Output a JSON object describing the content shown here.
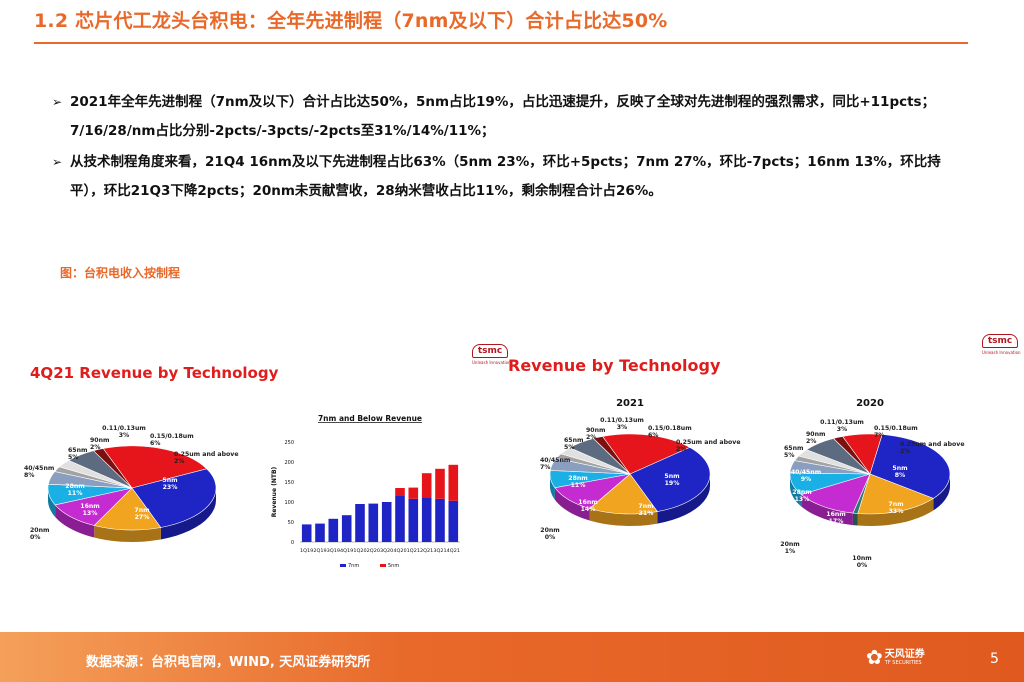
{
  "header": {
    "title": "1.2 芯片代工龙头台积电：全年先进制程（7nm及以下）合计占比达50%"
  },
  "bullets": [
    "2021年全年先进制程（7nm及以下）合计占比达50%，5nm占比19%，占比迅速提升，反映了全球对先进制程的强烈需求，同比+11pcts；7/16/28/nm占比分别-2pcts/-3pcts/-2pcts至31%/14%/11%；",
    "从技术制程角度来看，21Q4 16nm及以下先进制程占比63%（5nm 23%，环比+5pcts；7nm 27%，环比-7pcts；16nm 13%，环比持平），环比21Q3下降2pcts；20nm未贡献营收，28纳米营收占比11%，剩余制程合计占26%。"
  ],
  "figure_caption": "图：台积电收入按制程",
  "panel1": {
    "title": "4Q21 Revenue by Technology"
  },
  "panel3": {
    "title": "Revenue by Technology",
    "logo": "tsmc",
    "logo_tagline": "Unleash Innovation"
  },
  "footer": {
    "source": "数据来源：台积电官网，WIND, 天风证券研究所",
    "brand": "天风证券",
    "brand_sub": "TF SECURITIES",
    "page_number": "5"
  },
  "colors": {
    "accent": "#e8692a",
    "title_red": "#e01d1d",
    "5nm": "#e5151b",
    "7nm": "#1f24c4",
    "16nm": "#f0a420",
    "20nm": "#2f7a6e",
    "28nm": "#c42bd0",
    "40/45nm": "#1ab0e6",
    "65nm": "#8a9fc0",
    "90nm": "#a3a3a3",
    "0.11/0.13um": "#e0e0e0",
    "0.15/0.18um": "#5c6b80",
    "0.25um and above": "#7b1010"
  },
  "chart_data": [
    {
      "type": "pie",
      "title": "",
      "labels": [
        "5nm",
        "7nm",
        "16nm",
        "20nm",
        "28nm",
        "40/45nm",
        "65nm",
        "90nm",
        "0.11/0.13um",
        "0.15/0.18um",
        "0.25um and above"
      ],
      "values": [
        23,
        27,
        13,
        0,
        11,
        8,
        5,
        2,
        3,
        6,
        2
      ]
    },
    {
      "type": "bar",
      "title": "7nm and Below Revenue",
      "ylabel": "Revenue (NTB)",
      "ylim": [
        0,
        250
      ],
      "yticks": [
        0,
        50,
        100,
        150,
        200,
        250
      ],
      "categories": [
        "1Q19",
        "2Q19",
        "3Q19",
        "4Q19",
        "1Q20",
        "2Q20",
        "3Q20",
        "4Q20",
        "1Q21",
        "2Q21",
        "3Q21",
        "4Q21"
      ],
      "category_label_text": "1Q192Q193Q194Q191Q202Q203Q204Q201Q212Q213Q214Q21",
      "series": [
        {
          "name": "7nm",
          "values": [
            44,
            46,
            58,
            67,
            95,
            96,
            100,
            115,
            108,
            112,
            108,
            103
          ]
        },
        {
          "name": "5nm",
          "values": [
            0,
            0,
            0,
            0,
            0,
            0,
            0,
            20,
            28,
            60,
            75,
            90
          ]
        }
      ],
      "stacked": true,
      "legend": "bottom"
    },
    {
      "type": "pie",
      "title": "2021",
      "labels": [
        "5nm",
        "7nm",
        "16nm",
        "20nm",
        "28nm",
        "40/45nm",
        "65nm",
        "90nm",
        "0.11/0.13um",
        "0.15/0.18um",
        "0.25um and above"
      ],
      "values": [
        19,
        31,
        14,
        0,
        11,
        7,
        5,
        2,
        3,
        6,
        2
      ]
    },
    {
      "type": "pie",
      "title": "2020",
      "labels": [
        "5nm",
        "7nm",
        "10nm",
        "16nm",
        "20nm",
        "28nm",
        "40/45nm",
        "65nm",
        "90nm",
        "0.11/0.13um",
        "0.15/0.18um",
        "0.25um and above"
      ],
      "values": [
        8,
        33,
        0,
        17,
        1,
        13,
        9,
        5,
        2,
        3,
        7,
        2
      ]
    }
  ]
}
